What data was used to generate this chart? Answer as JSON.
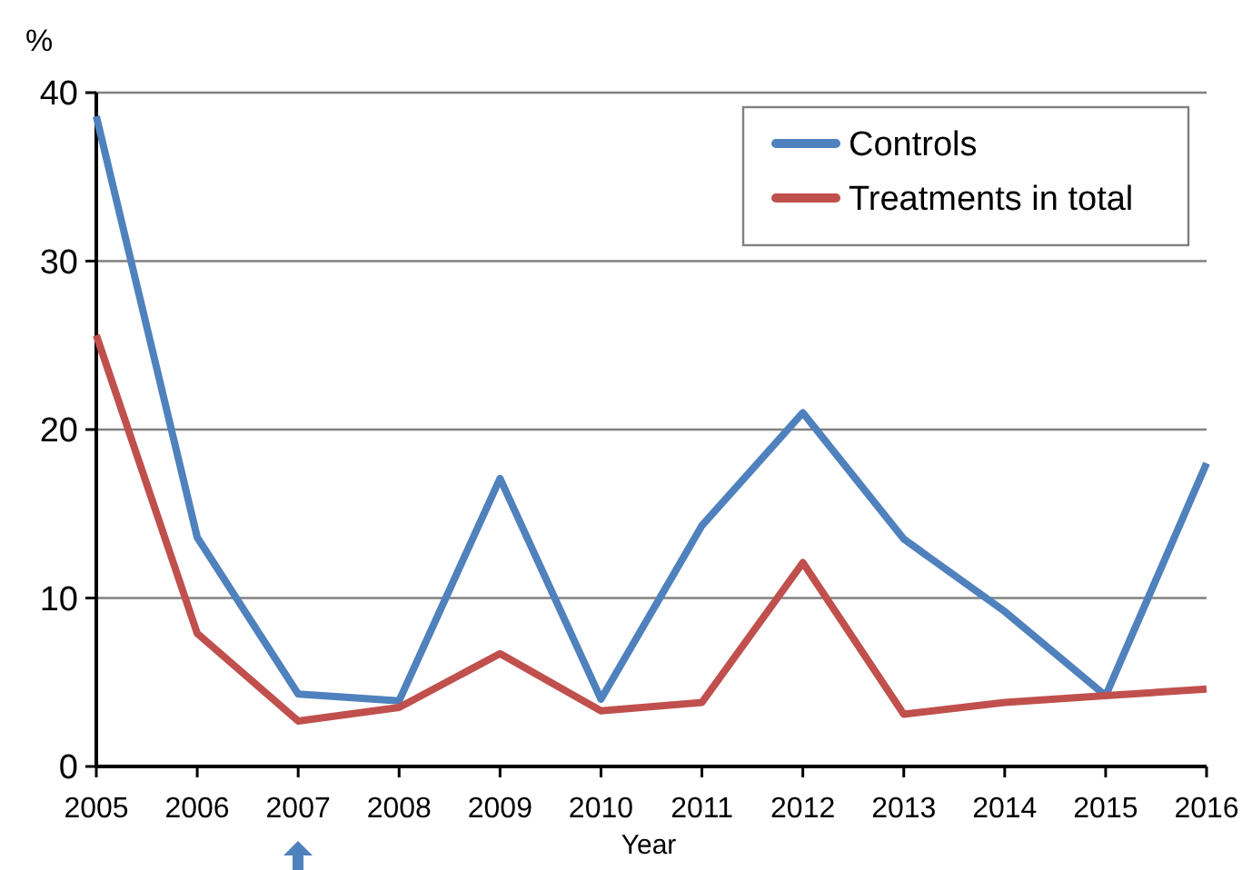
{
  "chart_data": {
    "type": "line",
    "ylabel": "%",
    "xlabel": "Year",
    "x": [
      2005,
      2006,
      2007,
      2008,
      2009,
      2010,
      2011,
      2012,
      2013,
      2014,
      2015,
      2016
    ],
    "xlim": [
      2005,
      2016
    ],
    "xticks": [
      2005,
      2006,
      2007,
      2008,
      2009,
      2010,
      2011,
      2012,
      2013,
      2014,
      2015,
      2016
    ],
    "ylim": [
      0,
      40
    ],
    "yticks": [
      0,
      10,
      20,
      30,
      40
    ],
    "grid": "y",
    "legend": "top right",
    "series": [
      {
        "name": "Controls",
        "color": "#4f81bd",
        "values": [
          38.6,
          13.6,
          4.3,
          3.9,
          17.1,
          4.0,
          14.3,
          21.0,
          13.5,
          9.2,
          4.2,
          18.0
        ]
      },
      {
        "name": "Treatments in total",
        "color": "#c0504d",
        "values": [
          25.6,
          7.9,
          2.7,
          3.5,
          6.7,
          3.3,
          3.8,
          12.1,
          3.1,
          3.8,
          4.2,
          4.6
        ]
      }
    ]
  }
}
